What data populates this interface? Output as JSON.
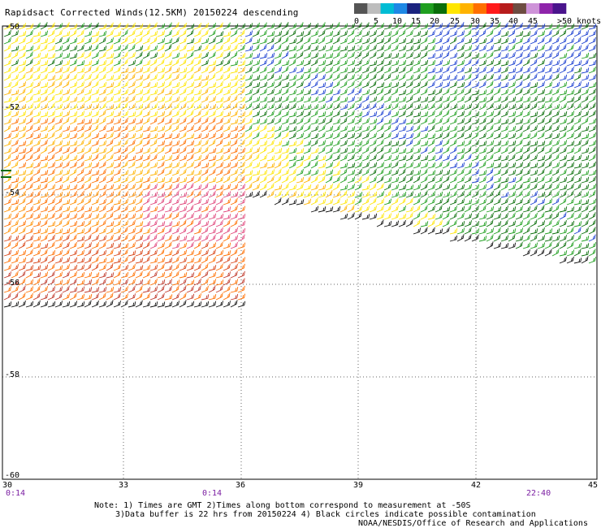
{
  "title": "Rapidsact Corrected Winds(12.5KM) 20150224 descending",
  "legend": {
    "colors": [
      "#555555",
      "#bdbdbd",
      "#00bcd4",
      "#1e88e5",
      "#1a237e",
      "#1f9f1f",
      "#0a6e0a",
      "#ffe600",
      "#ffb300",
      "#ff6f00",
      "#ff1a1a",
      "#b71c1c",
      "#6d4c41",
      "#ce93d8",
      "#8e24aa",
      "#4a148c"
    ],
    "labels": [
      "0",
      "5",
      "10",
      "15",
      "20",
      "25",
      "30",
      "35",
      "40",
      "45",
      ">50 knots"
    ]
  },
  "y_ticks": [
    "-50",
    "-52",
    "-54",
    "-56",
    "-58",
    "-60"
  ],
  "x_ticks": [
    "30",
    "33",
    "36",
    "39",
    "42",
    "45"
  ],
  "times": [
    "0:14",
    "0:14",
    "22:40"
  ],
  "notes": {
    "line1": "Note: 1) Times are GMT 2)Times along bottom correspond to measurement at -50S",
    "line2": "3)Data buffer is 22 hrs from 20150224 4) Black circles indicate possible contamination",
    "credit": "NOAA/NESDIS/Office of Research and Applications"
  }
}
